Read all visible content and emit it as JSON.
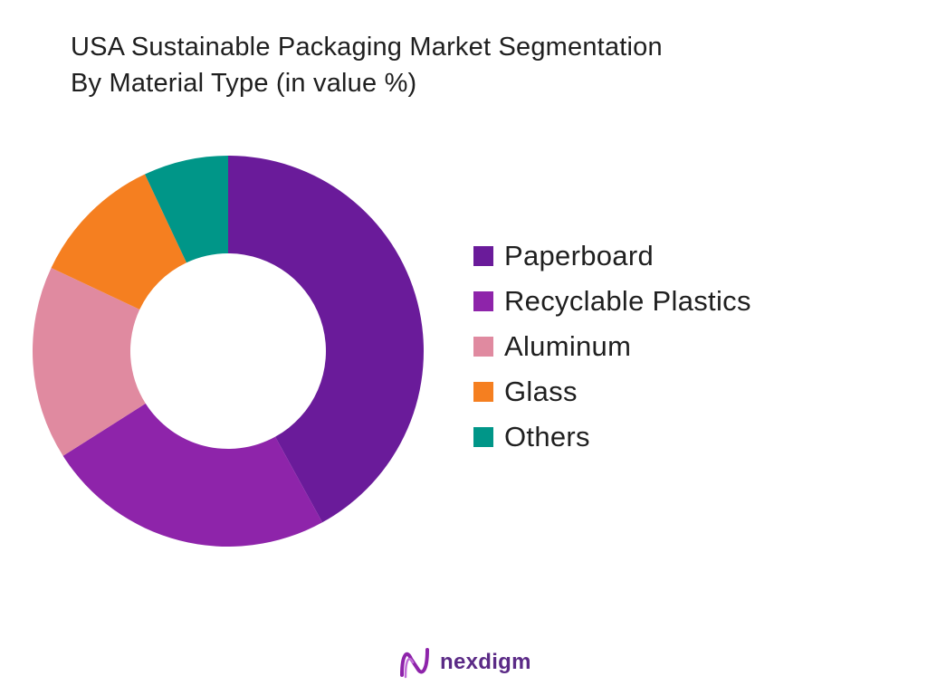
{
  "chart_data": {
    "type": "pie",
    "title": "USA Sustainable Packaging Market Segmentation",
    "subtitle": "By Material Type (in value %)",
    "categories": [
      "Paperboard",
      "Recyclable Plastics",
      "Aluminum",
      "Glass",
      "Others"
    ],
    "values": [
      42,
      24,
      16,
      11,
      7
    ],
    "colors": [
      "#6a1b9a",
      "#8e24aa",
      "#e08aa0",
      "#f57f20",
      "#009688"
    ],
    "legend": "right",
    "donut": true
  },
  "brand": {
    "logo_text": "nexdigm",
    "logo_color": "#5b2a86"
  }
}
